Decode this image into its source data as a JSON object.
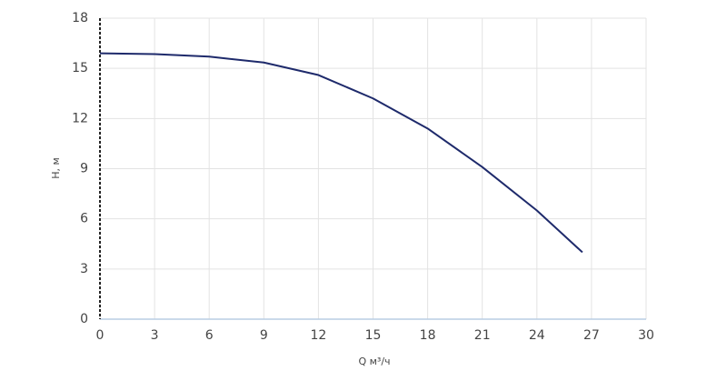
{
  "chart_data": {
    "type": "line",
    "x_label": "Q м³/ч",
    "y_label": "H, м",
    "x": [
      0,
      3,
      6,
      9,
      12,
      15,
      18,
      21,
      24,
      26.5
    ],
    "series": [
      {
        "color": "#1e2a6b",
        "values": [
          15.9,
          15.85,
          15.7,
          15.35,
          14.6,
          13.2,
          11.4,
          9.1,
          6.5,
          4.0
        ]
      }
    ],
    "xlim": [
      0,
      30
    ],
    "xticks": [
      0,
      3,
      6,
      9,
      12,
      15,
      18,
      21,
      24,
      27,
      30
    ],
    "ylim": [
      0,
      18
    ],
    "yticks": [
      0,
      3,
      6,
      9,
      12,
      15,
      18
    ],
    "grid": true
  }
}
